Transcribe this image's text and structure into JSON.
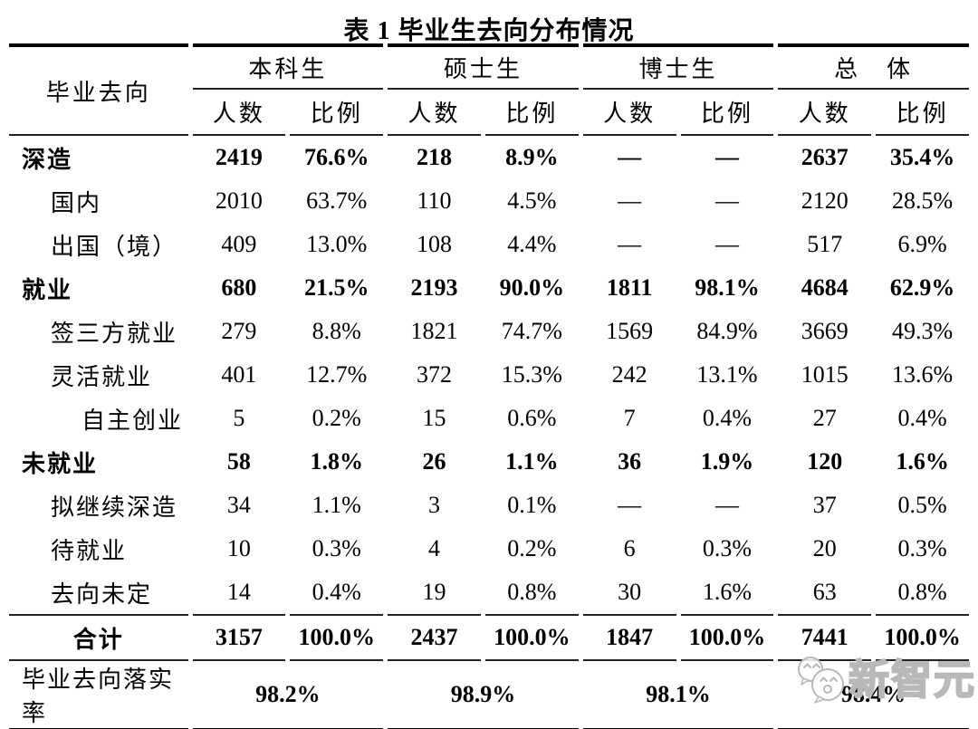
{
  "title": "表 1 毕业生去向分布情况",
  "table": {
    "corner_header": "毕业去向",
    "group_headers": [
      "本科生",
      "硕士生",
      "博士生",
      "总　体"
    ],
    "sub_headers": [
      "人数",
      "比例",
      "人数",
      "比例",
      "人数",
      "比例",
      "人数",
      "比例"
    ],
    "rows": [
      {
        "label": "深造",
        "indent": 0,
        "bold": true,
        "values": [
          "2419",
          "76.6%",
          "218",
          "8.9%",
          "—",
          "—",
          "2637",
          "35.4%"
        ]
      },
      {
        "label": "国内",
        "indent": 1,
        "bold": false,
        "values": [
          "2010",
          "63.7%",
          "110",
          "4.5%",
          "—",
          "—",
          "2120",
          "28.5%"
        ]
      },
      {
        "label": "出国（境）",
        "indent": 1,
        "bold": false,
        "values": [
          "409",
          "13.0%",
          "108",
          "4.4%",
          "—",
          "—",
          "517",
          "6.9%"
        ]
      },
      {
        "label": "就业",
        "indent": 0,
        "bold": true,
        "values": [
          "680",
          "21.5%",
          "2193",
          "90.0%",
          "1811",
          "98.1%",
          "4684",
          "62.9%"
        ]
      },
      {
        "label": "签三方就业",
        "indent": 1,
        "bold": false,
        "values": [
          "279",
          "8.8%",
          "1821",
          "74.7%",
          "1569",
          "84.9%",
          "3669",
          "49.3%"
        ]
      },
      {
        "label": "灵活就业",
        "indent": 1,
        "bold": false,
        "values": [
          "401",
          "12.7%",
          "372",
          "15.3%",
          "242",
          "13.1%",
          "1015",
          "13.6%"
        ]
      },
      {
        "label": "自主创业",
        "indent": 2,
        "bold": false,
        "values": [
          "5",
          "0.2%",
          "15",
          "0.6%",
          "7",
          "0.4%",
          "27",
          "0.4%"
        ]
      },
      {
        "label": "未就业",
        "indent": 0,
        "bold": true,
        "values": [
          "58",
          "1.8%",
          "26",
          "1.1%",
          "36",
          "1.9%",
          "120",
          "1.6%"
        ]
      },
      {
        "label": "拟继续深造",
        "indent": 1,
        "bold": false,
        "values": [
          "34",
          "1.1%",
          "3",
          "0.1%",
          "—",
          "—",
          "37",
          "0.5%"
        ]
      },
      {
        "label": "待就业",
        "indent": 1,
        "bold": false,
        "values": [
          "10",
          "0.3%",
          "4",
          "0.2%",
          "6",
          "0.3%",
          "20",
          "0.3%"
        ]
      },
      {
        "label": "去向未定",
        "indent": 1,
        "bold": false,
        "values": [
          "14",
          "0.4%",
          "19",
          "0.8%",
          "30",
          "1.6%",
          "63",
          "0.8%"
        ]
      },
      {
        "label": "合计",
        "indent": "c",
        "bold": true,
        "values": [
          "3157",
          "100.0%",
          "2437",
          "100.0%",
          "1847",
          "100.0%",
          "7441",
          "100.0%"
        ]
      }
    ],
    "footer": {
      "label": "毕业去向落实率",
      "values": [
        "98.2%",
        "98.9%",
        "98.1%",
        "98.4%"
      ]
    }
  },
  "watermark": {
    "name": "新智元"
  },
  "colors": {
    "text": "#000000",
    "rule_thick": "#000000",
    "rule_thin": "#222222",
    "watermark_gray": "#b8b8b8",
    "background": "#ffffff"
  }
}
